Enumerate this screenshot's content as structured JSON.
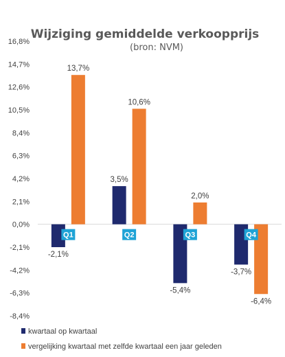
{
  "chart_data": {
    "type": "bar",
    "title": "Wijziging gemiddelde verkoopprijs",
    "subtitle": "(bron: NVM)",
    "categories": [
      "Q1",
      "Q2",
      "Q3",
      "Q4"
    ],
    "series": [
      {
        "name": "kwartaal op kwartaal",
        "values": [
          -2.1,
          3.5,
          -5.4,
          -3.7
        ],
        "labels": [
          "-2,1%",
          "3,5%",
          "-5,4%",
          "-3,7%"
        ],
        "color": "#1f2a6e"
      },
      {
        "name": "vergelijking kwartaal met zelfde kwartaal een jaar geleden",
        "values": [
          13.7,
          10.6,
          2.0,
          -6.4
        ],
        "labels": [
          "13,7%",
          "10,6%",
          "2,0%",
          "-6,4%"
        ],
        "color": "#ed7d31"
      }
    ],
    "y_ticks": [
      16.8,
      14.7,
      12.6,
      10.5,
      8.4,
      6.3,
      4.2,
      2.1,
      0.0,
      -2.1,
      -4.2,
      -6.3,
      -8.4
    ],
    "y_tick_labels": [
      "16,8%",
      "14,7%",
      "12,6%",
      "10,5%",
      "8,4%",
      "6,3%",
      "4,2%",
      "2,1%",
      "0,0%",
      "-2,1%",
      "-4,2%",
      "-6,3%",
      "-8,4%"
    ],
    "ylim": [
      -8.4,
      16.8
    ],
    "category_label_color": "#1fa3d6",
    "grid": false,
    "legend_position": "bottom-left"
  }
}
